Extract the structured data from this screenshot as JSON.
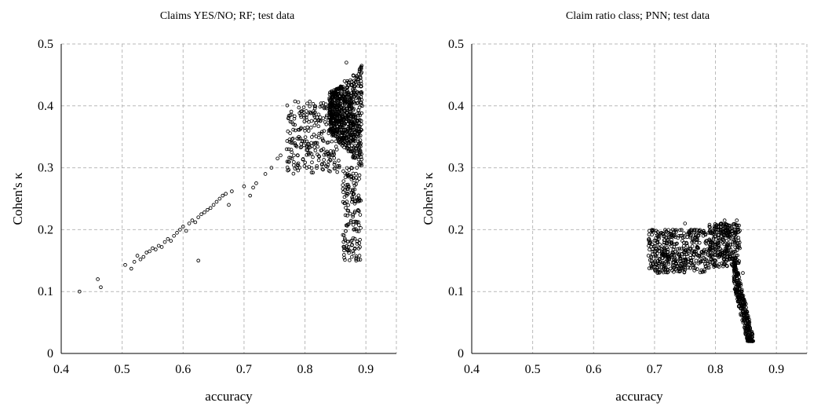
{
  "chart_data": [
    {
      "type": "scatter",
      "title": "Claims YES/NO; RF; test data",
      "xlabel": "accuracy",
      "ylabel": "Cohen's κ",
      "xlim": [
        0.4,
        0.95
      ],
      "ylim": [
        0,
        0.5
      ],
      "xticks": [
        "0.4",
        "0.5",
        "0.6",
        "0.7",
        "0.8",
        "0.9"
      ],
      "yticks": [
        "0",
        "0.1",
        "0.2",
        "0.3",
        "0.4",
        "0.5"
      ],
      "grid": true,
      "marker": "open-circle",
      "points": [
        [
          0.43,
          0.1
        ],
        [
          0.46,
          0.12
        ],
        [
          0.465,
          0.107
        ],
        [
          0.505,
          0.143
        ],
        [
          0.515,
          0.137
        ],
        [
          0.52,
          0.148
        ],
        [
          0.525,
          0.158
        ],
        [
          0.53,
          0.152
        ],
        [
          0.535,
          0.156
        ],
        [
          0.54,
          0.163
        ],
        [
          0.545,
          0.165
        ],
        [
          0.55,
          0.17
        ],
        [
          0.555,
          0.168
        ],
        [
          0.56,
          0.174
        ],
        [
          0.565,
          0.172
        ],
        [
          0.57,
          0.18
        ],
        [
          0.575,
          0.185
        ],
        [
          0.58,
          0.182
        ],
        [
          0.585,
          0.19
        ],
        [
          0.59,
          0.195
        ],
        [
          0.595,
          0.2
        ],
        [
          0.6,
          0.205
        ],
        [
          0.605,
          0.198
        ],
        [
          0.61,
          0.21
        ],
        [
          0.615,
          0.215
        ],
        [
          0.62,
          0.212
        ],
        [
          0.625,
          0.22
        ],
        [
          0.625,
          0.15
        ],
        [
          0.63,
          0.225
        ],
        [
          0.635,
          0.228
        ],
        [
          0.64,
          0.232
        ],
        [
          0.645,
          0.235
        ],
        [
          0.65,
          0.24
        ],
        [
          0.655,
          0.245
        ],
        [
          0.66,
          0.25
        ],
        [
          0.665,
          0.255
        ],
        [
          0.67,
          0.258
        ],
        [
          0.675,
          0.24
        ],
        [
          0.68,
          0.262
        ],
        [
          0.7,
          0.27
        ],
        [
          0.71,
          0.255
        ],
        [
          0.715,
          0.268
        ],
        [
          0.72,
          0.275
        ],
        [
          0.735,
          0.29
        ],
        [
          0.745,
          0.3
        ],
        [
          0.755,
          0.315
        ],
        [
          0.76,
          0.32
        ],
        [
          0.77,
          0.33
        ],
        [
          0.78,
          0.34
        ],
        [
          0.79,
          0.35
        ],
        [
          0.8,
          0.36
        ],
        [
          0.81,
          0.365
        ],
        [
          0.815,
          0.385
        ],
        [
          0.82,
          0.34
        ],
        [
          0.83,
          0.38
        ],
        [
          0.84,
          0.39
        ],
        [
          0.85,
          0.42
        ],
        [
          0.86,
          0.43
        ],
        [
          0.865,
          0.44
        ],
        [
          0.868,
          0.47
        ],
        [
          0.87,
          0.43
        ],
        [
          0.872,
          0.4
        ],
        [
          0.874,
          0.36
        ],
        [
          0.876,
          0.3
        ],
        [
          0.878,
          0.25
        ],
        [
          0.88,
          0.2
        ],
        [
          0.882,
          0.17
        ],
        [
          0.884,
          0.15
        ],
        [
          0.886,
          0.35
        ],
        [
          0.888,
          0.42
        ],
        [
          0.89,
          0.46
        ],
        [
          0.892,
          0.44
        ],
        [
          0.894,
          0.4
        ]
      ],
      "clusters": [
        {
          "x": [
            0.84,
            0.893
          ],
          "y": [
            0.3,
            0.465
          ],
          "n": 700
        },
        {
          "x": [
            0.862,
            0.892
          ],
          "y": [
            0.15,
            0.3
          ],
          "n": 150
        },
        {
          "x": [
            0.77,
            0.86
          ],
          "y": [
            0.29,
            0.41
          ],
          "n": 260
        }
      ]
    },
    {
      "type": "scatter",
      "title": "Claim ratio class; PNN; test data",
      "xlabel": "accuracy",
      "ylabel": "Cohen's κ",
      "xlim": [
        0.4,
        0.95
      ],
      "ylim": [
        0,
        0.5
      ],
      "xticks": [
        "0.4",
        "0.5",
        "0.6",
        "0.7",
        "0.8",
        "0.9"
      ],
      "yticks": [
        "0",
        "0.1",
        "0.2",
        "0.3",
        "0.4",
        "0.5"
      ],
      "grid": true,
      "marker": "open-circle",
      "points": [
        [
          0.69,
          0.158
        ],
        [
          0.695,
          0.15
        ],
        [
          0.7,
          0.14
        ],
        [
          0.7,
          0.165
        ],
        [
          0.705,
          0.13
        ],
        [
          0.71,
          0.17
        ],
        [
          0.72,
          0.18
        ],
        [
          0.73,
          0.2
        ],
        [
          0.74,
          0.19
        ],
        [
          0.75,
          0.21
        ],
        [
          0.76,
          0.2
        ],
        [
          0.77,
          0.185
        ],
        [
          0.78,
          0.19
        ],
        [
          0.79,
          0.205
        ],
        [
          0.8,
          0.16
        ],
        [
          0.81,
          0.21
        ],
        [
          0.815,
          0.215
        ],
        [
          0.82,
          0.2
        ],
        [
          0.83,
          0.19
        ],
        [
          0.835,
          0.215
        ],
        [
          0.84,
          0.17
        ],
        [
          0.845,
          0.13
        ],
        [
          0.85,
          0.08
        ],
        [
          0.852,
          0.06
        ],
        [
          0.855,
          0.04
        ],
        [
          0.858,
          0.025
        ],
        [
          0.86,
          0.02
        ]
      ],
      "clusters": [
        {
          "x": [
            0.69,
            0.79
          ],
          "y": [
            0.13,
            0.2
          ],
          "n": 420
        },
        {
          "x": [
            0.79,
            0.84
          ],
          "y": [
            0.14,
            0.21
          ],
          "n": 300
        },
        {
          "x": [
            0.83,
            0.862
          ],
          "y": [
            0.02,
            0.16
          ],
          "n": 320
        }
      ]
    }
  ]
}
